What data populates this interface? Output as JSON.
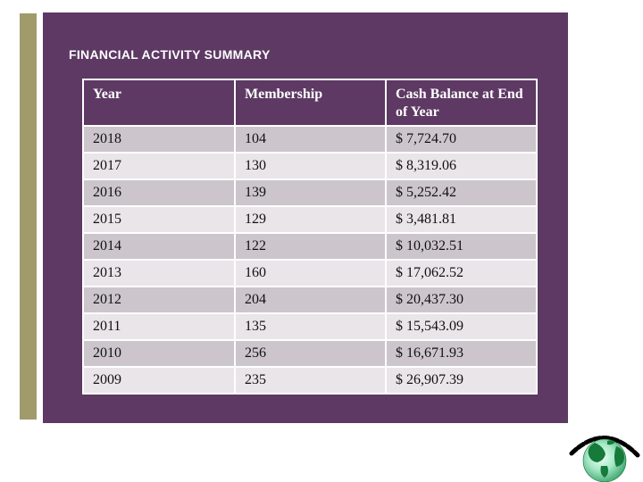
{
  "slide": {
    "title": "FINANCIAL ACTIVITY SUMMARY",
    "logo": {
      "icon": "globe-icon",
      "arc": "arc-text-decoration"
    }
  },
  "table": {
    "columns": [
      "Year",
      "Membership",
      "Cash Balance at End of Year"
    ],
    "rows": [
      [
        "2018",
        "104",
        "$ 7,724.70"
      ],
      [
        "2017",
        "130",
        "$ 8,319.06"
      ],
      [
        "2016",
        "139",
        "$ 5,252.42"
      ],
      [
        "2015",
        "129",
        "$ 3,481.81"
      ],
      [
        "2014",
        "122",
        "$ 10,032.51"
      ],
      [
        "2013",
        "160",
        "$ 17,062.52"
      ],
      [
        "2012",
        "204",
        "$ 20,437.30"
      ],
      [
        "2011",
        "135",
        "$ 15,543.09"
      ],
      [
        "2010",
        "256",
        "$ 16,671.93"
      ],
      [
        "2009",
        "235",
        "$ 26,907.39"
      ]
    ]
  },
  "colors": {
    "slide_bg": "#5d3963",
    "accent_stripe": "#a19a6b",
    "header_bg": "#5d3963",
    "header_text": "#ffffff",
    "row_dark": "#cdc5cc",
    "row_light": "#e9e5e9",
    "cell_text": "#111111",
    "globe_green": "#157a3a"
  }
}
